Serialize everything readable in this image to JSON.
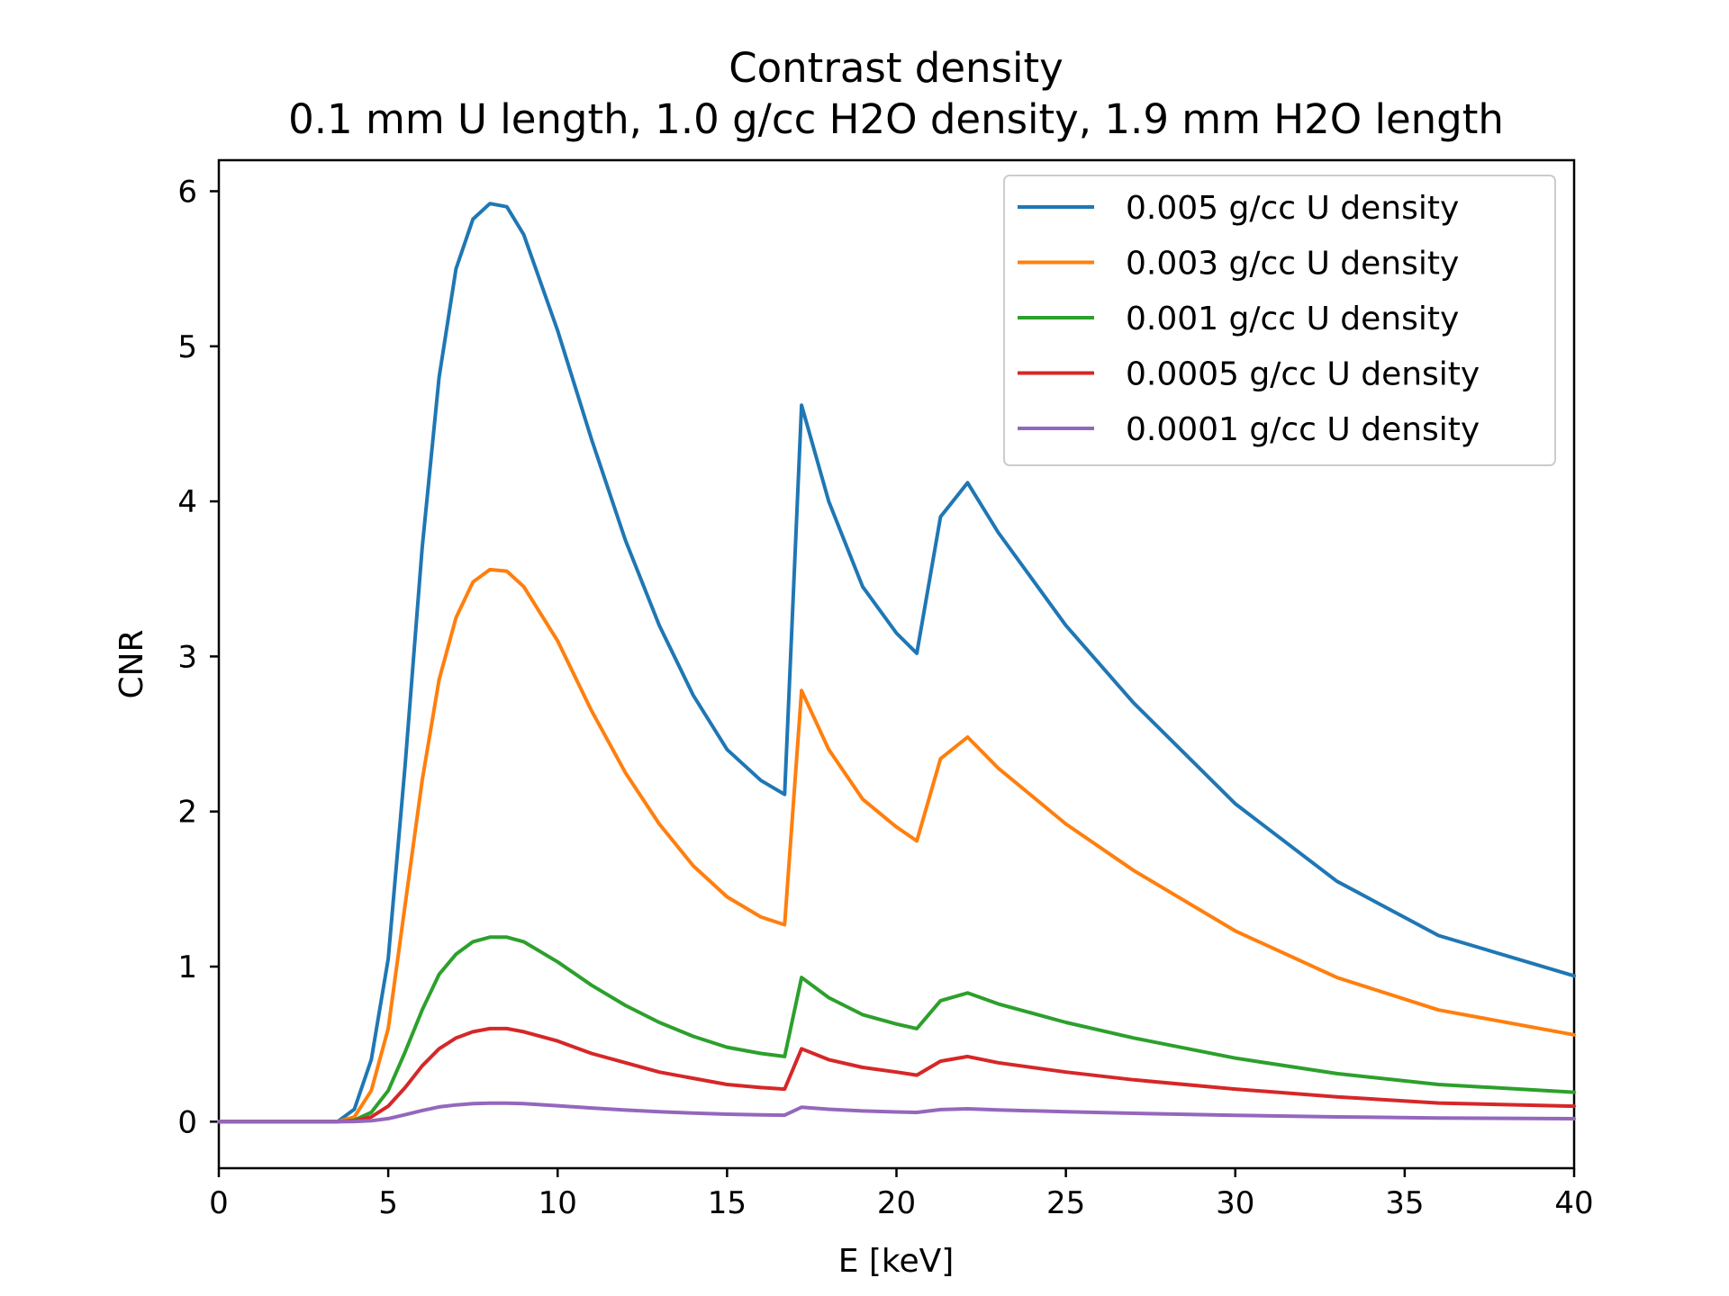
{
  "chart_data": {
    "type": "line",
    "title": "Contrast density",
    "subtitle": "0.1 mm U length, 1.0 g/cc H2O density, 1.9 mm H2O length",
    "xlabel": "E [keV]",
    "ylabel": "CNR",
    "xlim": [
      0,
      40
    ],
    "ylim": [
      -0.3,
      6.2
    ],
    "x_ticks": [
      0,
      5,
      10,
      15,
      20,
      25,
      30,
      35,
      40
    ],
    "y_ticks": [
      0,
      1,
      2,
      3,
      4,
      5,
      6
    ],
    "grid": false,
    "legend_position": "top-right",
    "x": [
      0,
      3.5,
      4,
      4.5,
      5,
      5.5,
      6,
      6.5,
      7,
      7.5,
      8,
      8.5,
      9,
      10,
      11,
      12,
      13,
      14,
      15,
      16,
      16.7,
      17.2,
      18,
      19,
      20,
      20.6,
      21.3,
      22.1,
      23,
      25,
      27,
      30,
      33,
      36,
      40
    ],
    "series": [
      {
        "name": "0.005 g/cc U density",
        "color": "#1f77b4",
        "values": [
          0,
          0,
          0.08,
          0.4,
          1.05,
          2.3,
          3.7,
          4.8,
          5.5,
          5.82,
          5.92,
          5.9,
          5.72,
          5.1,
          4.4,
          3.75,
          3.2,
          2.75,
          2.4,
          2.2,
          2.11,
          4.62,
          4.0,
          3.45,
          3.15,
          3.02,
          3.9,
          4.12,
          3.8,
          3.2,
          2.7,
          2.05,
          1.55,
          1.2,
          0.94
        ]
      },
      {
        "name": "0.003 g/cc U density",
        "color": "#ff7f0e",
        "values": [
          0,
          0,
          0.03,
          0.2,
          0.6,
          1.4,
          2.2,
          2.85,
          3.25,
          3.48,
          3.56,
          3.55,
          3.45,
          3.1,
          2.65,
          2.25,
          1.92,
          1.65,
          1.45,
          1.32,
          1.27,
          2.78,
          2.4,
          2.08,
          1.9,
          1.81,
          2.34,
          2.48,
          2.28,
          1.92,
          1.62,
          1.23,
          0.93,
          0.72,
          0.56
        ]
      },
      {
        "name": "0.001 g/cc U density",
        "color": "#2ca02c",
        "values": [
          0,
          0,
          0.01,
          0.06,
          0.2,
          0.45,
          0.72,
          0.95,
          1.08,
          1.16,
          1.19,
          1.19,
          1.16,
          1.03,
          0.88,
          0.75,
          0.64,
          0.55,
          0.48,
          0.44,
          0.42,
          0.93,
          0.8,
          0.69,
          0.63,
          0.6,
          0.78,
          0.83,
          0.76,
          0.64,
          0.54,
          0.41,
          0.31,
          0.24,
          0.19
        ]
      },
      {
        "name": "0.0005 g/cc U density",
        "color": "#d62728",
        "values": [
          0,
          0,
          0.005,
          0.03,
          0.1,
          0.22,
          0.36,
          0.47,
          0.54,
          0.58,
          0.6,
          0.6,
          0.58,
          0.52,
          0.44,
          0.38,
          0.32,
          0.28,
          0.24,
          0.22,
          0.21,
          0.47,
          0.4,
          0.35,
          0.32,
          0.3,
          0.39,
          0.42,
          0.38,
          0.32,
          0.27,
          0.21,
          0.16,
          0.12,
          0.1
        ]
      },
      {
        "name": "0.0001 g/cc U density",
        "color": "#9467bd",
        "values": [
          0,
          0,
          0.001,
          0.006,
          0.02,
          0.045,
          0.072,
          0.095,
          0.108,
          0.116,
          0.119,
          0.119,
          0.116,
          0.103,
          0.088,
          0.075,
          0.064,
          0.055,
          0.048,
          0.044,
          0.042,
          0.093,
          0.08,
          0.069,
          0.063,
          0.06,
          0.078,
          0.083,
          0.076,
          0.064,
          0.054,
          0.041,
          0.031,
          0.024,
          0.019
        ]
      }
    ]
  }
}
